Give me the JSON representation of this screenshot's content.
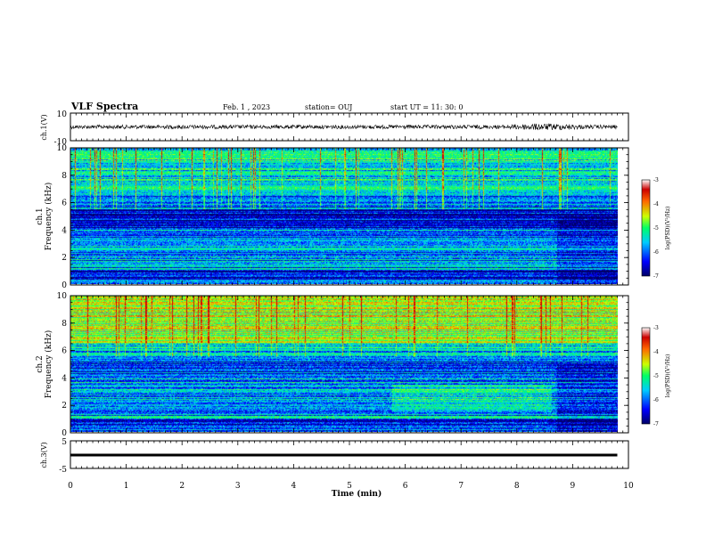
{
  "header": {
    "title": "VLF Spectra",
    "date": "Feb. 1 , 2023",
    "station": "station= OUJ",
    "start": "start UT = 11: 30: 0"
  },
  "colors": {
    "colormap": [
      "#000066",
      "#0000ff",
      "#00ccff",
      "#00ff66",
      "#ccff00",
      "#ff6600",
      "#cc0000",
      "#ffffff"
    ],
    "axis": "#000000",
    "trace": "#000000"
  },
  "chart_data": [
    {
      "type": "line",
      "panel": "ch1-waveform",
      "ylabel": "ch.1(V)",
      "ylim": [
        -10,
        10
      ],
      "ytick_labels": [
        "10",
        "-10"
      ],
      "xlim": [
        0,
        10
      ],
      "series": [
        {
          "x": [
            0,
            9.8
          ],
          "approx_amplitude": 1,
          "approx_center": 0
        }
      ]
    },
    {
      "type": "heatmap",
      "panel": "ch1-spectrogram",
      "ylabel": "ch.1 Frequency (kHz)",
      "ylim": [
        0,
        10
      ],
      "ytick_labels": [
        "0",
        "2",
        "4",
        "6",
        "8",
        "10"
      ],
      "xlim": [
        0,
        10
      ],
      "data_extent_x": [
        0,
        9.8
      ],
      "colorbar": {
        "label": "log(PSD)(V²/Hz)",
        "range": [
          -7,
          -3
        ],
        "tick_labels": [
          "-3",
          "-4",
          "-5",
          "-6",
          "-7"
        ]
      }
    },
    {
      "type": "heatmap",
      "panel": "ch2-spectrogram",
      "ylabel": "ch.2 Frequency (kHz)",
      "ylim": [
        0,
        10
      ],
      "ytick_labels": [
        "0",
        "2",
        "4",
        "6",
        "8",
        "10"
      ],
      "xlim": [
        0,
        10
      ],
      "data_extent_x": [
        0,
        9.8
      ],
      "colorbar": {
        "label": "log(PSD)(V²/Hz)",
        "range": [
          -7,
          -3
        ],
        "tick_labels": [
          "-3",
          "-4",
          "-5",
          "-6",
          "-7"
        ]
      }
    },
    {
      "type": "line",
      "panel": "ch3-waveform",
      "ylabel": "ch.3(V)",
      "ylim": [
        -5,
        5
      ],
      "ytick_labels": [
        "5",
        "-5"
      ],
      "xlim": [
        0,
        10
      ],
      "series": [
        {
          "x": [
            0,
            9.8
          ],
          "approx_value": -0.5
        }
      ]
    }
  ],
  "xaxis": {
    "label": "Time (min)",
    "tick_labels": [
      "0",
      "1",
      "2",
      "3",
      "4",
      "5",
      "6",
      "7",
      "8",
      "9",
      "10"
    ]
  }
}
